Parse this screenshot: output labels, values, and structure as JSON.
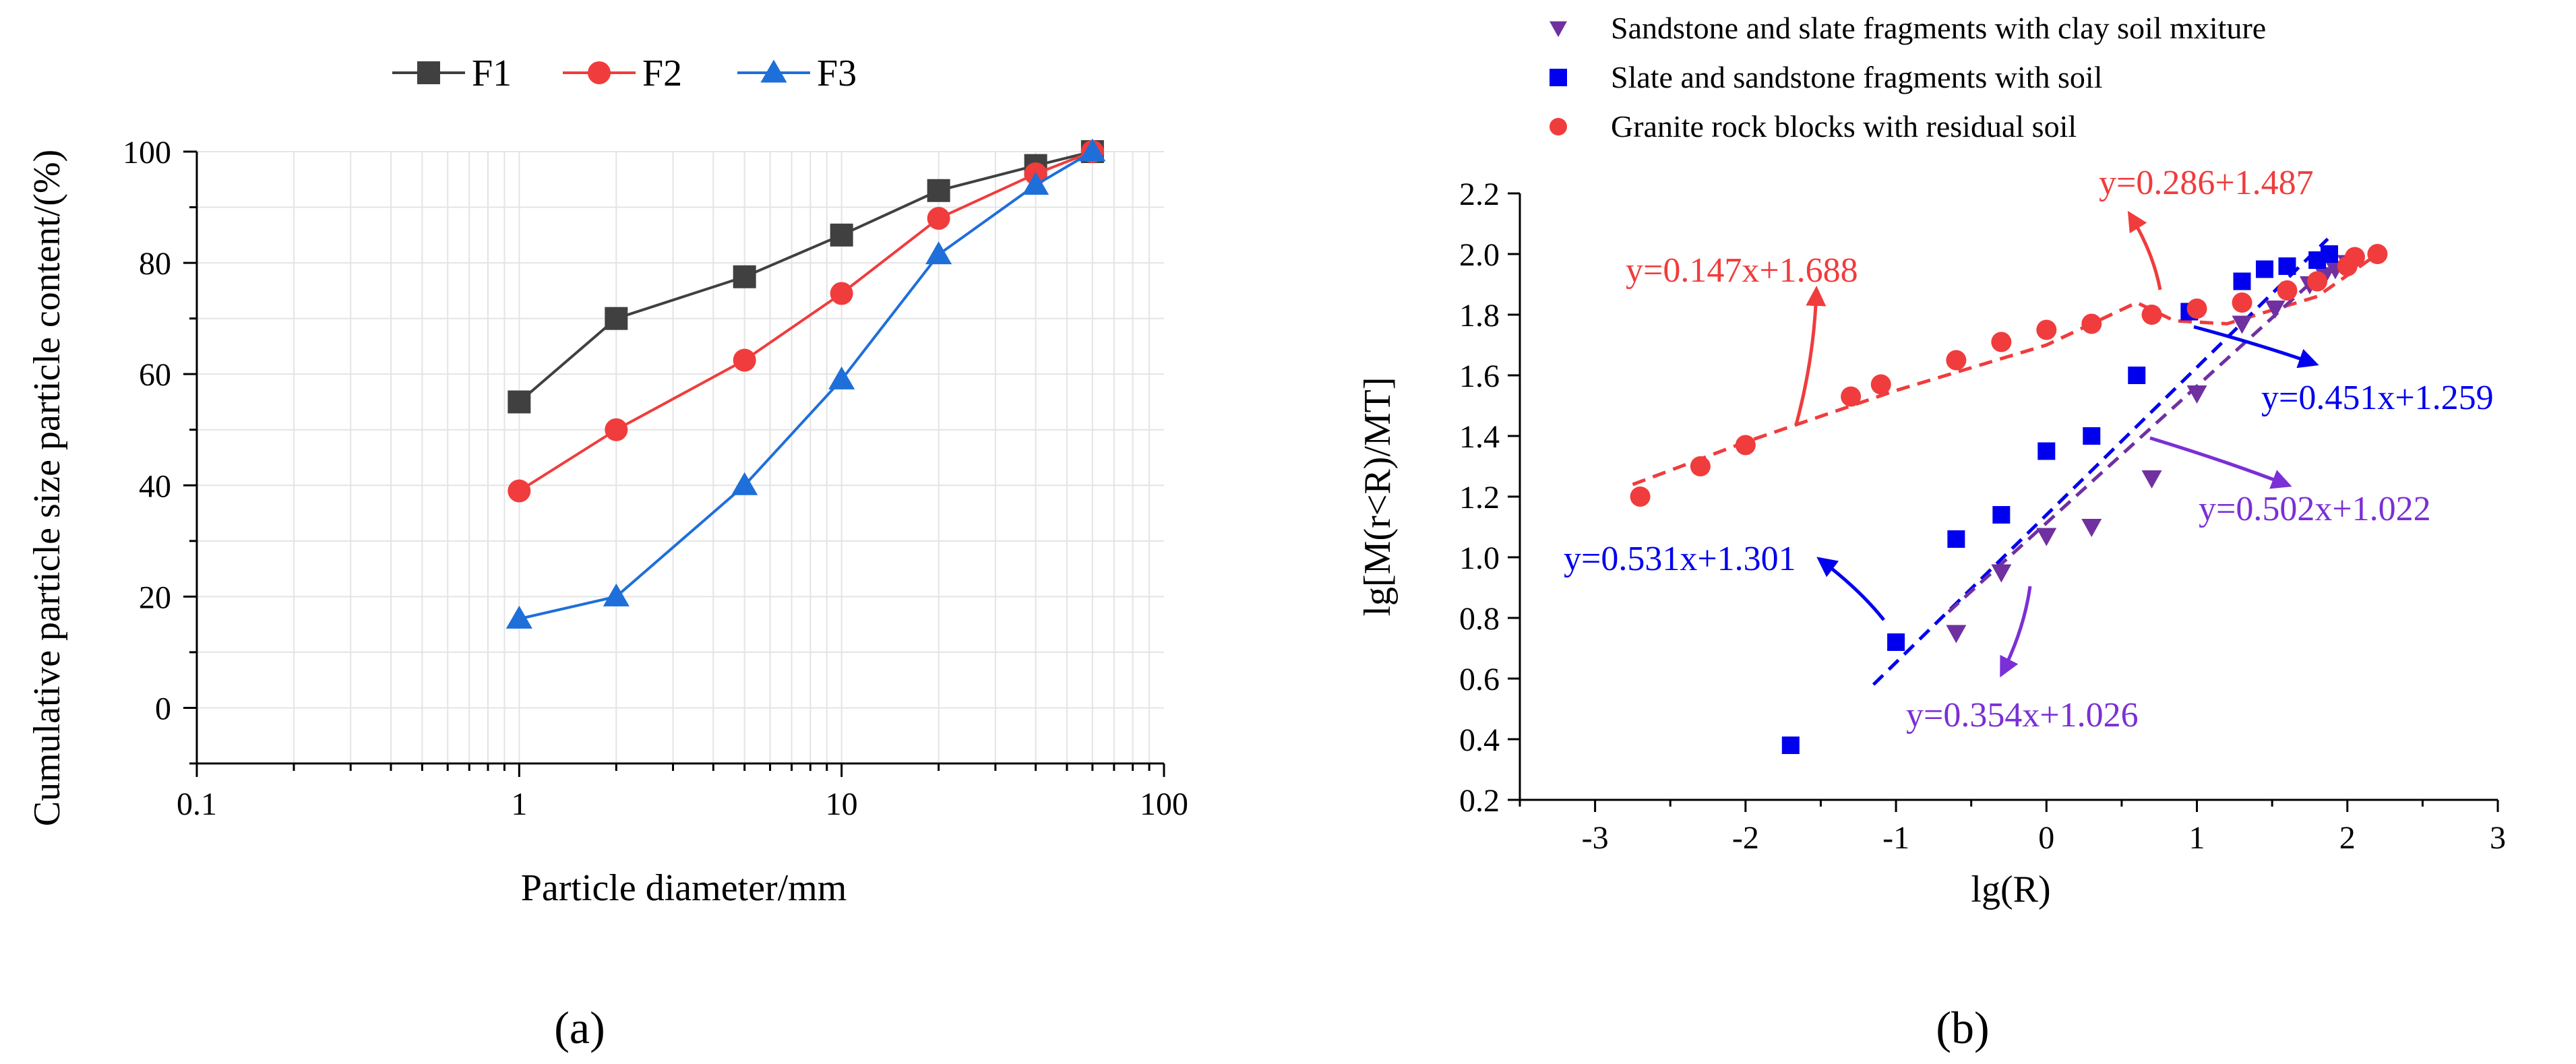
{
  "chart_data": [
    {
      "panel_label": "(a)",
      "type": "line",
      "xscale": "log",
      "xlabel": "Particle diameter/mm",
      "ylabel": "Cumulative particle size particle content/(%)",
      "xlim": [
        0.1,
        100
      ],
      "ylim": [
        -10,
        100
      ],
      "xticks": [
        0.1,
        1,
        10,
        100
      ],
      "xtick_labels": [
        "0.1",
        "1",
        "10",
        "100"
      ],
      "yticks": [
        0,
        20,
        40,
        60,
        80,
        100
      ],
      "ytick_labels": [
        "0",
        "20",
        "40",
        "60",
        "80",
        "100"
      ],
      "grid": true,
      "legend_position": "top",
      "x": [
        1,
        2,
        5,
        10,
        20,
        40,
        60
      ],
      "series": [
        {
          "name": "F1",
          "color": "#404040",
          "marker": "square",
          "values": [
            55,
            70,
            77.5,
            85,
            93,
            97.5,
            100
          ]
        },
        {
          "name": "F2",
          "color": "#f03c3c",
          "marker": "circle",
          "values": [
            39,
            50,
            62.5,
            74.5,
            88,
            96,
            100
          ]
        },
        {
          "name": "F3",
          "color": "#1e6fd9",
          "marker": "triangle",
          "values": [
            16,
            20,
            40,
            59,
            81.5,
            94,
            100
          ]
        }
      ]
    },
    {
      "panel_label": "(b)",
      "type": "scatter",
      "xlabel": "lg(R)",
      "ylabel": "lg[M(r<R)/MT]",
      "xlim": [
        -3.5,
        3
      ],
      "ylim": [
        0.2,
        2.2
      ],
      "xticks": [
        -3,
        -2,
        -1,
        0,
        1,
        2,
        3
      ],
      "xtick_labels": [
        "-3",
        "-2",
        "-1",
        "0",
        "1",
        "2",
        "3"
      ],
      "yticks": [
        0.2,
        0.4,
        0.6,
        0.8,
        1.0,
        1.2,
        1.4,
        1.6,
        1.8,
        2.0,
        2.2
      ],
      "ytick_labels": [
        "0.2",
        "0.4",
        "0.6",
        "0.8",
        "1.0",
        "1.2",
        "1.4",
        "1.6",
        "1.8",
        "2.0",
        "2.2"
      ],
      "legend_position": "top",
      "series": [
        {
          "name": "Sandstone and slate fragments with clay soil mxiture",
          "color": "#7030a0",
          "marker": "triangle-down",
          "points": [
            [
              -0.6,
              0.75
            ],
            [
              -0.3,
              0.95
            ],
            [
              0.0,
              1.07
            ],
            [
              0.3,
              1.1
            ],
            [
              0.7,
              1.26
            ],
            [
              1.0,
              1.54
            ],
            [
              1.3,
              1.77
            ],
            [
              1.52,
              1.82
            ],
            [
              1.75,
              1.9
            ],
            [
              1.85,
              1.93
            ],
            [
              1.92,
              1.95
            ],
            [
              2.0,
              1.97
            ]
          ]
        },
        {
          "name": "Slate and sandstone fragments with soil",
          "color": "#0000ee",
          "marker": "square",
          "points": [
            [
              -1.7,
              0.38
            ],
            [
              -1.0,
              0.72
            ],
            [
              -0.6,
              1.06
            ],
            [
              -0.3,
              1.14
            ],
            [
              0.0,
              1.35
            ],
            [
              0.3,
              1.4
            ],
            [
              0.6,
              1.6
            ],
            [
              0.95,
              1.81
            ],
            [
              1.3,
              1.91
            ],
            [
              1.45,
              1.95
            ],
            [
              1.6,
              1.96
            ],
            [
              1.8,
              1.98
            ],
            [
              1.88,
              2.0
            ]
          ]
        },
        {
          "name": "Granite rock blocks with residual soil",
          "color": "#f03c3c",
          "marker": "circle",
          "points": [
            [
              -2.7,
              1.2
            ],
            [
              -2.3,
              1.3
            ],
            [
              -2.0,
              1.37
            ],
            [
              -1.3,
              1.53
            ],
            [
              -1.1,
              1.57
            ],
            [
              -0.6,
              1.65
            ],
            [
              -0.3,
              1.71
            ],
            [
              0.0,
              1.75
            ],
            [
              0.3,
              1.77
            ],
            [
              0.7,
              1.8
            ],
            [
              1.0,
              1.82
            ],
            [
              1.3,
              1.84
            ],
            [
              1.6,
              1.88
            ],
            [
              1.8,
              1.91
            ],
            [
              2.0,
              1.96
            ],
            [
              2.05,
              1.99
            ],
            [
              2.2,
              2.0
            ]
          ]
        }
      ],
      "fit_lines": [
        {
          "color": "#f03c3c",
          "points": [
            [
              -2.75,
              1.24
            ],
            [
              -2.0,
              1.38
            ],
            [
              -1.0,
              1.55
            ],
            [
              0.0,
              1.7
            ],
            [
              0.6,
              1.84
            ],
            [
              0.85,
              1.78
            ],
            [
              1.2,
              1.77
            ],
            [
              1.8,
              1.86
            ],
            [
              2.2,
              2.0
            ]
          ]
        },
        {
          "color": "#0000ee",
          "points": [
            [
              -1.15,
              0.58
            ],
            [
              1.87,
              2.05
            ]
          ]
        },
        {
          "color": "#7030a0",
          "points": [
            [
              -0.65,
              0.82
            ],
            [
              1.9,
              1.97
            ]
          ]
        }
      ],
      "annotations": [
        {
          "text": "y=0.147x+1.688",
          "color": "#f03c3c"
        },
        {
          "text": "y=0.286+1.487",
          "color": "#f03c3c"
        },
        {
          "text": "y=0.451x+1.259",
          "color": "#0000ee"
        },
        {
          "text": "y=0.531x+1.301",
          "color": "#0000ee"
        },
        {
          "text": "y=0.502x+1.022",
          "color": "#7b2fd6"
        },
        {
          "text": "y=0.354x+1.026",
          "color": "#7b2fd6"
        }
      ]
    }
  ]
}
